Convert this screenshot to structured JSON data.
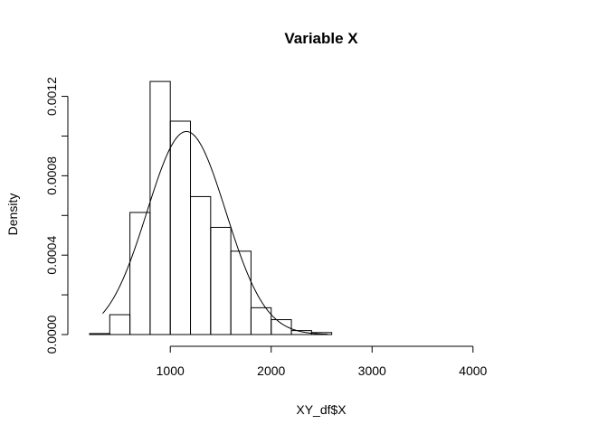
{
  "chart_data": {
    "type": "histogram",
    "title": "Variable X",
    "xlabel": "XY_df$X",
    "ylabel": "Density",
    "bins": [
      {
        "x0": 200,
        "x1": 400,
        "density": 5e-06
      },
      {
        "x0": 400,
        "x1": 600,
        "density": 0.0001
      },
      {
        "x0": 600,
        "x1": 800,
        "density": 0.000615
      },
      {
        "x0": 800,
        "x1": 1000,
        "density": 0.001275
      },
      {
        "x0": 1000,
        "x1": 1200,
        "density": 0.001075
      },
      {
        "x0": 1200,
        "x1": 1400,
        "density": 0.000695
      },
      {
        "x0": 1400,
        "x1": 1600,
        "density": 0.00054
      },
      {
        "x0": 1600,
        "x1": 1800,
        "density": 0.00042
      },
      {
        "x0": 1800,
        "x1": 2000,
        "density": 0.000135
      },
      {
        "x0": 2000,
        "x1": 2200,
        "density": 7.5e-05
      },
      {
        "x0": 2200,
        "x1": 2400,
        "density": 2e-05
      },
      {
        "x0": 2400,
        "x1": 2600,
        "density": 1e-05
      }
    ],
    "density_curve": {
      "type": "normal",
      "mean": 1160,
      "sd": 390,
      "x_range": [
        330,
        2560
      ]
    },
    "xlim": [
      200,
      4800
    ],
    "ylim": [
      0,
      0.00128
    ],
    "x_axis_ticks": [
      {
        "value": 1000,
        "label": "1000"
      },
      {
        "value": 2000,
        "label": "2000"
      },
      {
        "value": 3000,
        "label": "3000"
      },
      {
        "value": 4000,
        "label": "4000"
      }
    ],
    "y_axis_ticks": [
      {
        "value": 0,
        "label": "0.0000"
      },
      {
        "value": 0.0004,
        "label": "0.0004"
      },
      {
        "value": 0.0008,
        "label": "0.0008"
      },
      {
        "value": 0.0012,
        "label": "0.0012"
      }
    ],
    "y_minor_ticks": [
      0.0002,
      0.0006,
      0.001
    ],
    "grid": false,
    "legend": "none"
  }
}
